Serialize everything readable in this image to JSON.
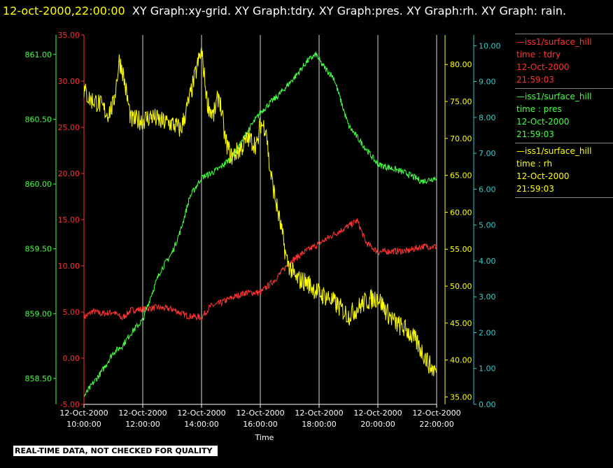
{
  "header": {
    "timestamp": "12-oct-2000,22:00:00",
    "text": "XY Graph:xy-grid.  XY Graph:tdry.  XY Graph:pres.  XY Graph:rh.  XY Graph: rain."
  },
  "footer": {
    "disclaimer": "REAL-TIME DATA, NOT CHECKED FOR QUALITY"
  },
  "legend": [
    {
      "line1": "—iss1/surface_hill",
      "line2": "time : tdry",
      "line3": "12-Oct-2000",
      "line4": "21:59:03",
      "color": "#ff3333"
    },
    {
      "line1": "—iss1/surface_hill",
      "line2": "time : pres",
      "line3": "12-Oct-2000",
      "line4": "21:59:03",
      "color": "#44ff44"
    },
    {
      "line1": "—iss1/surface_hill",
      "line2": "time : rh",
      "line3": "12-Oct-2000",
      "line4": "21:59:03",
      "color": "#ffff00"
    }
  ],
  "chart_data": {
    "type": "line",
    "xlabel": "Time",
    "xlim": [
      10,
      22
    ],
    "x_ticks": [
      {
        "value": 10,
        "date": "12-Oct-2000",
        "time": "10:00:00"
      },
      {
        "value": 12,
        "date": "12-Oct-2000",
        "time": "12:00:00"
      },
      {
        "value": 14,
        "date": "12-Oct-2000",
        "time": "14:00:00"
      },
      {
        "value": 16,
        "date": "12-Oct-2000",
        "time": "16:00:00"
      },
      {
        "value": 18,
        "date": "12-Oct-2000",
        "time": "18:00:00"
      },
      {
        "value": 20,
        "date": "12-Oct-2000",
        "time": "20:00:00"
      },
      {
        "value": 22,
        "date": "12-Oct-2000",
        "time": "22:00:00"
      }
    ],
    "grid": "vertical",
    "axes": {
      "pres": {
        "side": "left-outer",
        "color": "#44ff44",
        "ylim": [
          858.3,
          861.15
        ],
        "ticks": [
          "858.50",
          "859.00",
          "859.50",
          "860.00",
          "860.50",
          "861.00"
        ]
      },
      "tdry": {
        "side": "left-inner",
        "color": "#ff3333",
        "ylim": [
          -5,
          35
        ],
        "ticks": [
          "-5.00",
          "0.00",
          "5.00",
          "10.00",
          "15.00",
          "20.00",
          "25.00",
          "30.00",
          "35.00"
        ]
      },
      "rh": {
        "side": "right-inner",
        "color": "#ffff00",
        "ylim": [
          34,
          84
        ],
        "ticks": [
          "35.00",
          "40.00",
          "45.00",
          "50.00",
          "55.00",
          "60.00",
          "65.00",
          "70.00",
          "75.00",
          "80.00"
        ]
      },
      "rain": {
        "side": "right-outer",
        "color": "#33cccc",
        "ylim": [
          0,
          10.3
        ],
        "ticks": [
          "0.00",
          "1.00",
          "2.00",
          "3.00",
          "4.00",
          "5.00",
          "6.00",
          "7.00",
          "8.00",
          "9.00",
          "10.00"
        ]
      }
    },
    "series": [
      {
        "key": "tdry",
        "color": "#ff3333",
        "x": [
          10,
          10.3,
          10.6,
          11.0,
          11.3,
          11.6,
          12.0,
          12.5,
          13.0,
          13.5,
          14.0,
          14.3,
          14.6,
          15.0,
          15.5,
          16.0,
          16.5,
          17.0,
          17.5,
          18.0,
          18.5,
          19.0,
          19.3,
          19.6,
          20.0,
          20.5,
          21.0,
          21.5,
          22.0
        ],
        "y": [
          4.4,
          5.1,
          4.8,
          5.0,
          4.3,
          5.2,
          5.3,
          5.5,
          5.3,
          4.6,
          4.4,
          5.6,
          5.9,
          6.5,
          7.1,
          7.1,
          8.5,
          10.4,
          11.5,
          12.4,
          13.4,
          14.3,
          14.9,
          12.5,
          11.5,
          11.6,
          11.6,
          12.1,
          12.1
        ]
      },
      {
        "key": "pres",
        "color": "#44ff44",
        "x": [
          10,
          10.3,
          10.6,
          11.0,
          11.3,
          11.6,
          12.0,
          12.3,
          12.6,
          13.0,
          13.3,
          13.6,
          14.0,
          14.3,
          14.6,
          15.0,
          15.3,
          15.6,
          16.0,
          16.3,
          16.6,
          17.0,
          17.3,
          17.6,
          17.9,
          18.1,
          18.5,
          19.0,
          19.5,
          20.0,
          20.5,
          21.0,
          21.5,
          22.0
        ],
        "y": [
          858.36,
          858.46,
          858.55,
          858.7,
          858.75,
          858.85,
          858.95,
          859.15,
          859.33,
          859.47,
          859.65,
          859.9,
          860.05,
          860.08,
          860.12,
          860.2,
          860.3,
          860.42,
          860.55,
          860.62,
          860.68,
          860.78,
          860.86,
          860.95,
          861.0,
          860.92,
          860.82,
          860.45,
          860.3,
          860.15,
          860.12,
          860.08,
          860.02,
          860.05
        ]
      },
      {
        "key": "rh",
        "color": "#ffff00",
        "x": [
          10,
          10.2,
          10.5,
          10.8,
          11.0,
          11.2,
          11.3,
          11.6,
          12.0,
          12.3,
          12.6,
          13.0,
          13.3,
          13.6,
          13.9,
          14.0,
          14.2,
          14.4,
          14.6,
          14.8,
          15.0,
          15.3,
          15.6,
          15.9,
          16.0,
          16.2,
          16.3,
          16.5,
          16.7,
          16.9,
          17.2,
          17.6,
          18.0,
          18.3,
          18.6,
          19.0,
          19.3,
          19.6,
          20.0,
          20.3,
          20.6,
          21.0,
          21.3,
          21.6,
          21.8,
          22.0
        ],
        "y": [
          76.5,
          75.3,
          74.8,
          73.3,
          74.5,
          80.5,
          79.5,
          72.5,
          72.5,
          73.0,
          72.3,
          72.0,
          71.2,
          75.5,
          80.5,
          81.8,
          74.8,
          73.0,
          76.0,
          70.0,
          67.5,
          68.5,
          70.0,
          69.0,
          72.0,
          71.5,
          66.5,
          62.0,
          58.0,
          53.5,
          51.0,
          50.5,
          49.0,
          48.5,
          47.5,
          46.0,
          47.0,
          48.0,
          48.5,
          46.5,
          45.0,
          44.0,
          42.5,
          40.5,
          39.0,
          38.5
        ]
      }
    ]
  }
}
